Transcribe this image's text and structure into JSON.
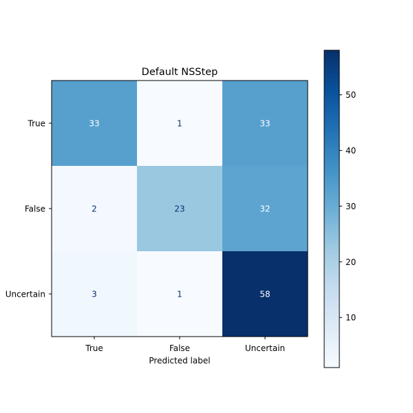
{
  "chart_data": {
    "type": "heatmap",
    "title": "Default NSStep",
    "xlabel": "Predicted label",
    "ylabel": "",
    "x_categories": [
      "True",
      "False",
      "Uncertain"
    ],
    "y_categories": [
      "True",
      "False",
      "Uncertain"
    ],
    "values": [
      [
        33,
        1,
        33
      ],
      [
        2,
        23,
        32
      ],
      [
        3,
        1,
        58
      ]
    ],
    "colormap": "Blues",
    "color_range": [
      1,
      58
    ],
    "colorbar_ticks": [
      10,
      20,
      30,
      40,
      50
    ],
    "grid": false
  }
}
